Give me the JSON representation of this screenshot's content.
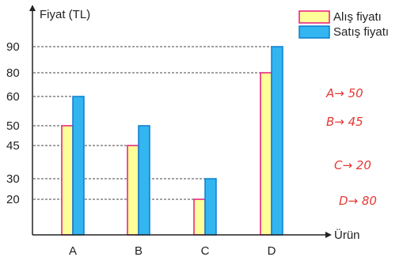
{
  "chart_data": {
    "type": "bar",
    "ylabel": "Fiyat (TL)",
    "xlabel": "Ürün",
    "categories": [
      "A",
      "B",
      "C",
      "D"
    ],
    "series": [
      {
        "name": "Alış fiyatı",
        "values": [
          50,
          45,
          20,
          80
        ],
        "color": "#ffff99",
        "edge": "#e8187c"
      },
      {
        "name": "Satış fiyatı",
        "values": [
          60,
          50,
          30,
          90
        ],
        "color": "#33b5f0",
        "edge": "#0a7fd0"
      }
    ],
    "y_ticks": [
      20,
      30,
      45,
      50,
      60,
      80,
      90
    ],
    "ylim": [
      0,
      90
    ],
    "grid": "dashed at tick values",
    "legend": "top-right"
  },
  "annotations": {
    "color": "#e53935",
    "lines": [
      "A→ 50",
      "B→ 45",
      "C→ 20",
      "D→ 80"
    ]
  }
}
